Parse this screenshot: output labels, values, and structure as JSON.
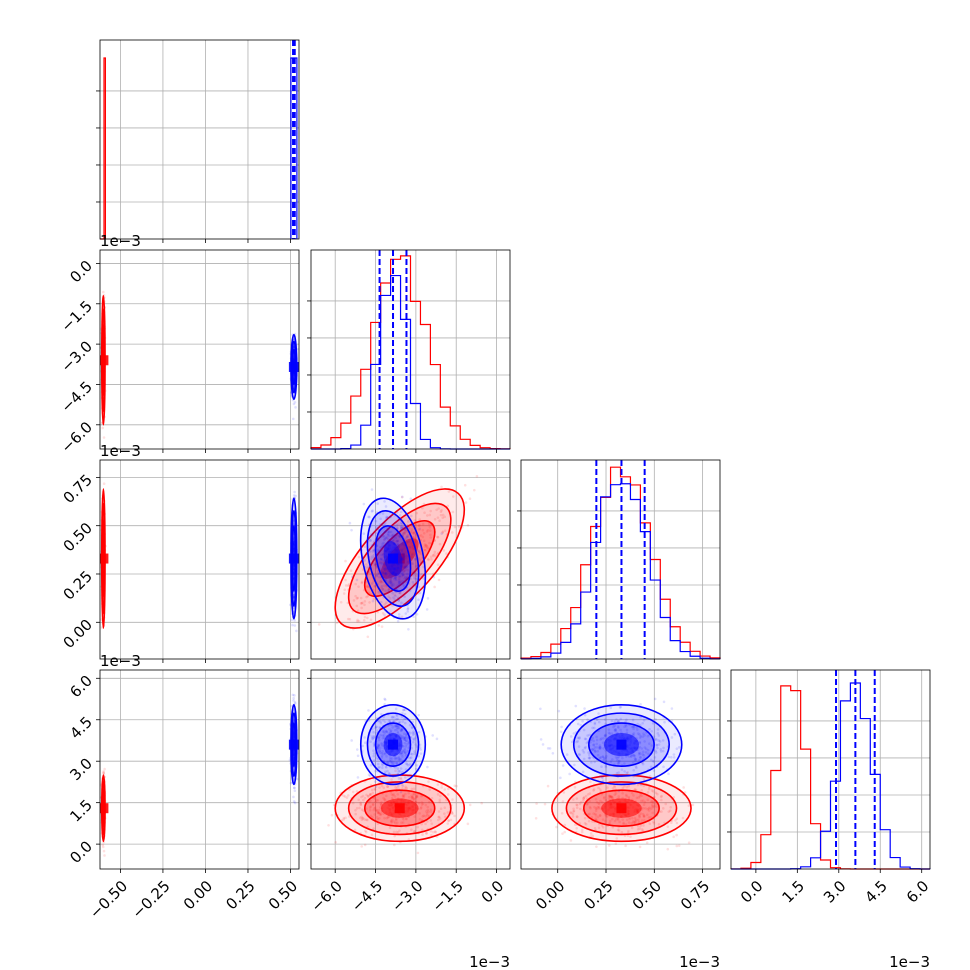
{
  "chart_data": {
    "type": "corner",
    "grid": true,
    "colors": {
      "red": "#ff0000",
      "blue": "#0000ff"
    },
    "parameters": [
      {
        "range": [
          -0.62,
          0.55
        ],
        "ticks": [
          -0.5,
          -0.25,
          0.0,
          0.25,
          0.5
        ],
        "tick_labels": [
          "−0.50",
          "−0.25",
          "0.00",
          "0.25",
          "0.50"
        ],
        "offset": ""
      },
      {
        "range": [
          -6.9,
          0.5
        ],
        "ticks": [
          -6.0,
          -4.5,
          -3.0,
          -1.5,
          0.0
        ],
        "tick_labels": [
          "−6.0",
          "−4.5",
          "−3.0",
          "−1.5",
          "0.0"
        ],
        "offset": "1e−3"
      },
      {
        "range": [
          -0.19,
          0.84
        ],
        "ticks": [
          0.0,
          0.25,
          0.5,
          0.75
        ],
        "tick_labels": [
          "0.00",
          "0.25",
          "0.50",
          "0.75"
        ],
        "offset": "1e−3"
      },
      {
        "range": [
          -0.9,
          6.3
        ],
        "ticks": [
          0.0,
          1.5,
          3.0,
          4.5,
          6.0
        ],
        "tick_labels": [
          "0.0",
          "1.5",
          "3.0",
          "4.5",
          "6.0"
        ],
        "offset": "1e−3"
      }
    ],
    "series": [
      {
        "color": "red",
        "mean": [
          -0.6,
          -3.6,
          0.33,
          1.3
        ],
        "sd": [
          0.004,
          1.0,
          0.15,
          0.5
        ],
        "corr": {
          "1-2": 0.7
        }
      },
      {
        "color": "blue",
        "mean": [
          0.52,
          -3.85,
          0.33,
          3.6
        ],
        "sd": [
          0.007,
          0.5,
          0.13,
          0.6
        ],
        "corr": {
          "1-2": -0.3
        }
      }
    ],
    "quantile_lines": {
      "color": "blue",
      "values": [
        [
          0.515,
          0.52,
          0.525
        ],
        [
          -4.35,
          -3.85,
          -3.35
        ],
        [
          0.2,
          0.33,
          0.45
        ],
        [
          2.9,
          3.6,
          4.3
        ]
      ]
    }
  }
}
